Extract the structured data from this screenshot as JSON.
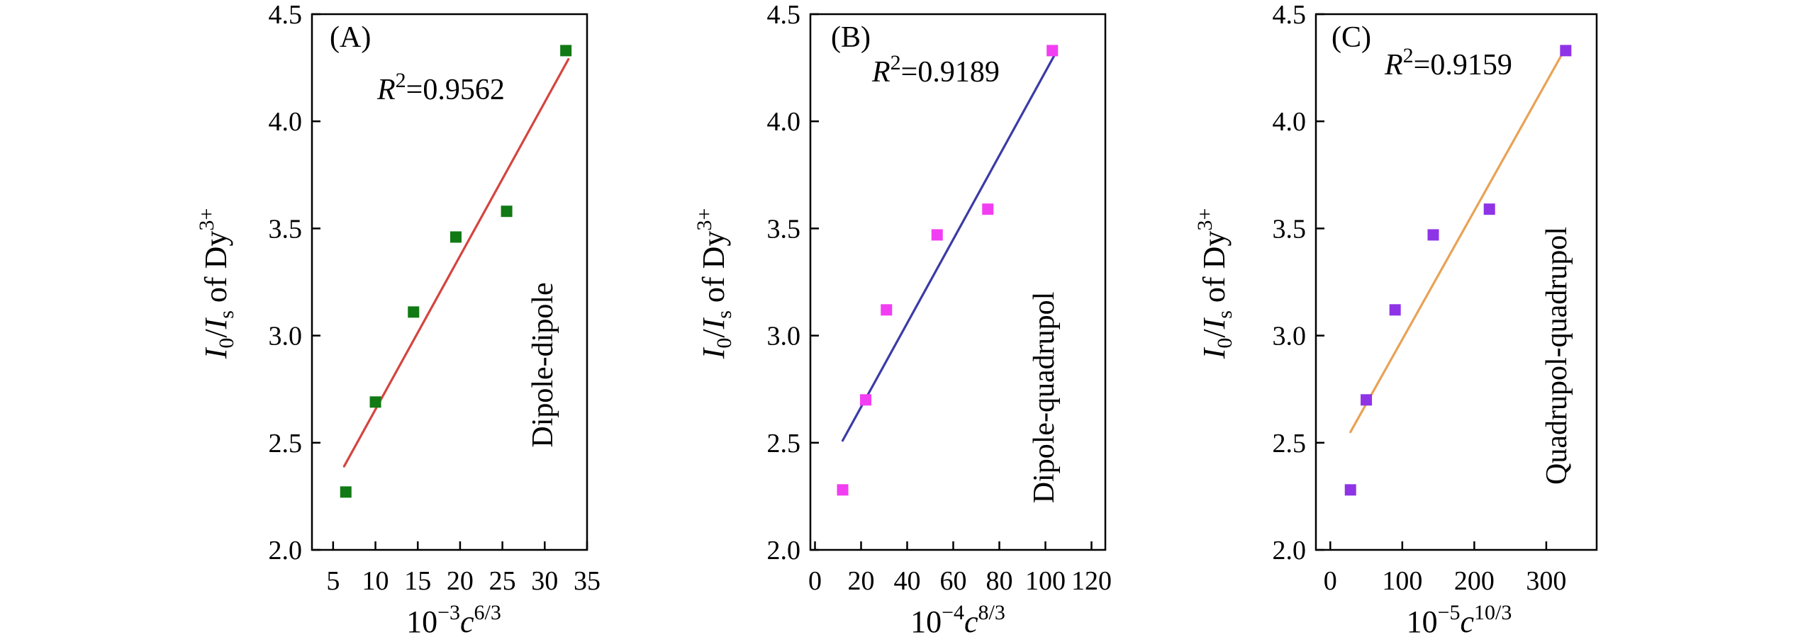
{
  "chart_data": [
    {
      "type": "scatter",
      "panel_label": "(A)",
      "mechanism_label": "Dipole-dipole",
      "r_squared": {
        "symbol": "R",
        "exponent": "2",
        "value": "=0.9562"
      },
      "xlabel": {
        "base": "10",
        "base_exponent": "−3",
        "variable": "c",
        "variable_exponent": "6/3"
      },
      "ylabel": {
        "numerator": "I",
        "numerator_sub": "0",
        "slash": "/",
        "denominator": "I",
        "denominator_sub": "s",
        "suffix": " of Dy",
        "suffix_sup": "3+"
      },
      "xlim": [
        2.5,
        35
      ],
      "ylim": [
        2.0,
        4.5
      ],
      "xtick_labels": [
        "5",
        "10",
        "15",
        "20",
        "25",
        "30",
        "35"
      ],
      "ytick_labels": [
        "2.0",
        "2.5",
        "3.0",
        "3.5",
        "4.0",
        "4.5"
      ],
      "grid": false,
      "x": [
        6.5,
        10.0,
        14.5,
        19.5,
        25.5,
        32.5
      ],
      "y": [
        2.27,
        2.69,
        3.11,
        3.46,
        3.58,
        4.33
      ],
      "fit_line": {
        "x": [
          6.3,
          32.8
        ],
        "y": [
          2.39,
          4.29
        ]
      },
      "marker_color": "#117a14",
      "line_color": "#d4453e"
    },
    {
      "type": "scatter",
      "panel_label": "(B)",
      "mechanism_label": "Dipole-quadrupol",
      "r_squared": {
        "symbol": "R",
        "exponent": "2",
        "value": "=0.9189"
      },
      "xlabel": {
        "base": "10",
        "base_exponent": "−4",
        "variable": "c",
        "variable_exponent": "8/3"
      },
      "ylabel": {
        "numerator": "I",
        "numerator_sub": "0",
        "slash": "/",
        "denominator": "I",
        "denominator_sub": "s",
        "suffix": " of Dy",
        "suffix_sup": "3+"
      },
      "xlim": [
        -2,
        126
      ],
      "ylim": [
        2.0,
        4.5
      ],
      "xtick_labels": [
        "0",
        "20",
        "40",
        "60",
        "80",
        "100",
        "120"
      ],
      "ytick_labels": [
        "2.0",
        "2.5",
        "3.0",
        "3.5",
        "4.0",
        "4.5"
      ],
      "grid": false,
      "x": [
        12,
        22,
        31,
        53,
        75,
        103
      ],
      "y": [
        2.28,
        2.7,
        3.12,
        3.47,
        3.59,
        4.33
      ],
      "fit_line": {
        "x": [
          12,
          104
        ],
        "y": [
          2.51,
          4.31
        ]
      },
      "marker_color": "#f23ef2",
      "line_color": "#3b3ba6"
    },
    {
      "type": "scatter",
      "panel_label": "(C)",
      "mechanism_label": "Quadrupol-quadrupol",
      "r_squared": {
        "symbol": "R",
        "exponent": "2",
        "value": "=0.9159"
      },
      "xlabel": {
        "base": "10",
        "base_exponent": "−5",
        "variable": "c",
        "variable_exponent": "10/3"
      },
      "ylabel": {
        "numerator": "I",
        "numerator_sub": "0",
        "slash": "/",
        "denominator": "I",
        "denominator_sub": "s",
        "suffix": " of Dy",
        "suffix_sup": "3+"
      },
      "xlim": [
        -20,
        370
      ],
      "ylim": [
        2.0,
        4.5
      ],
      "xtick_labels": [
        "0",
        "100",
        "200",
        "300"
      ],
      "ytick_labels": [
        "2.0",
        "2.5",
        "3.0",
        "3.5",
        "4.0",
        "4.5"
      ],
      "grid": false,
      "x": [
        28,
        50,
        90,
        143,
        221,
        327
      ],
      "y": [
        2.28,
        2.7,
        3.12,
        3.47,
        3.59,
        4.33
      ],
      "fit_line": {
        "x": [
          28,
          328
        ],
        "y": [
          2.55,
          4.35
        ]
      },
      "marker_color": "#8f33e6",
      "line_color": "#e9a255"
    }
  ]
}
